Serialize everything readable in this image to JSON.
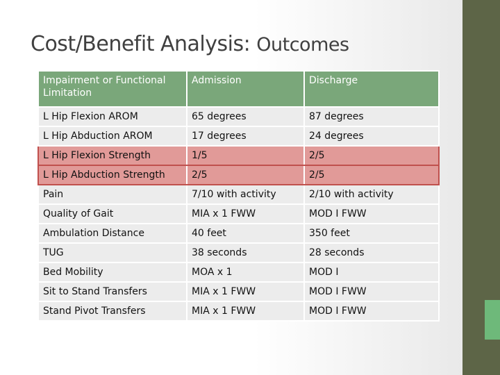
{
  "title": {
    "main": "Cost/Benefit Analysis: ",
    "sub": "Outcomes"
  },
  "table": {
    "headers": [
      "Impairment or Functional Limitation",
      "Admission",
      "Discharge"
    ],
    "rows": [
      [
        "L Hip Flexion AROM",
        "65 degrees",
        "87 degrees"
      ],
      [
        "L Hip Abduction AROM",
        "17 degrees",
        "24 degrees"
      ],
      [
        "L Hip Flexion Strength",
        "1/5",
        "2/5"
      ],
      [
        "L Hip Abduction Strength",
        "2/5",
        "2/5"
      ],
      [
        "Pain",
        "7/10 with activity",
        "2/10 with activity"
      ],
      [
        "Quality of Gait",
        "MIA x 1 FWW",
        "MOD I FWW"
      ],
      [
        "Ambulation Distance",
        "40 feet",
        "350 feet"
      ],
      [
        "TUG",
        "38 seconds",
        "28 seconds"
      ],
      [
        "Bed Mobility",
        "MOA x 1",
        "MOD I"
      ],
      [
        "Sit to Stand Transfers",
        "MIA x 1 FWW",
        "MOD I FWW"
      ],
      [
        "Stand Pivot Transfers",
        "MIA x 1 FWW",
        "MOD I FWW"
      ]
    ]
  },
  "colors": {
    "header_bg": "#7aa77a",
    "row_bg": "#ececec",
    "highlight_bg": "#e19a98",
    "highlight_border": "#c0504d",
    "sidebar": "#5d6547",
    "sidebar_accent": "#6eb97a"
  }
}
